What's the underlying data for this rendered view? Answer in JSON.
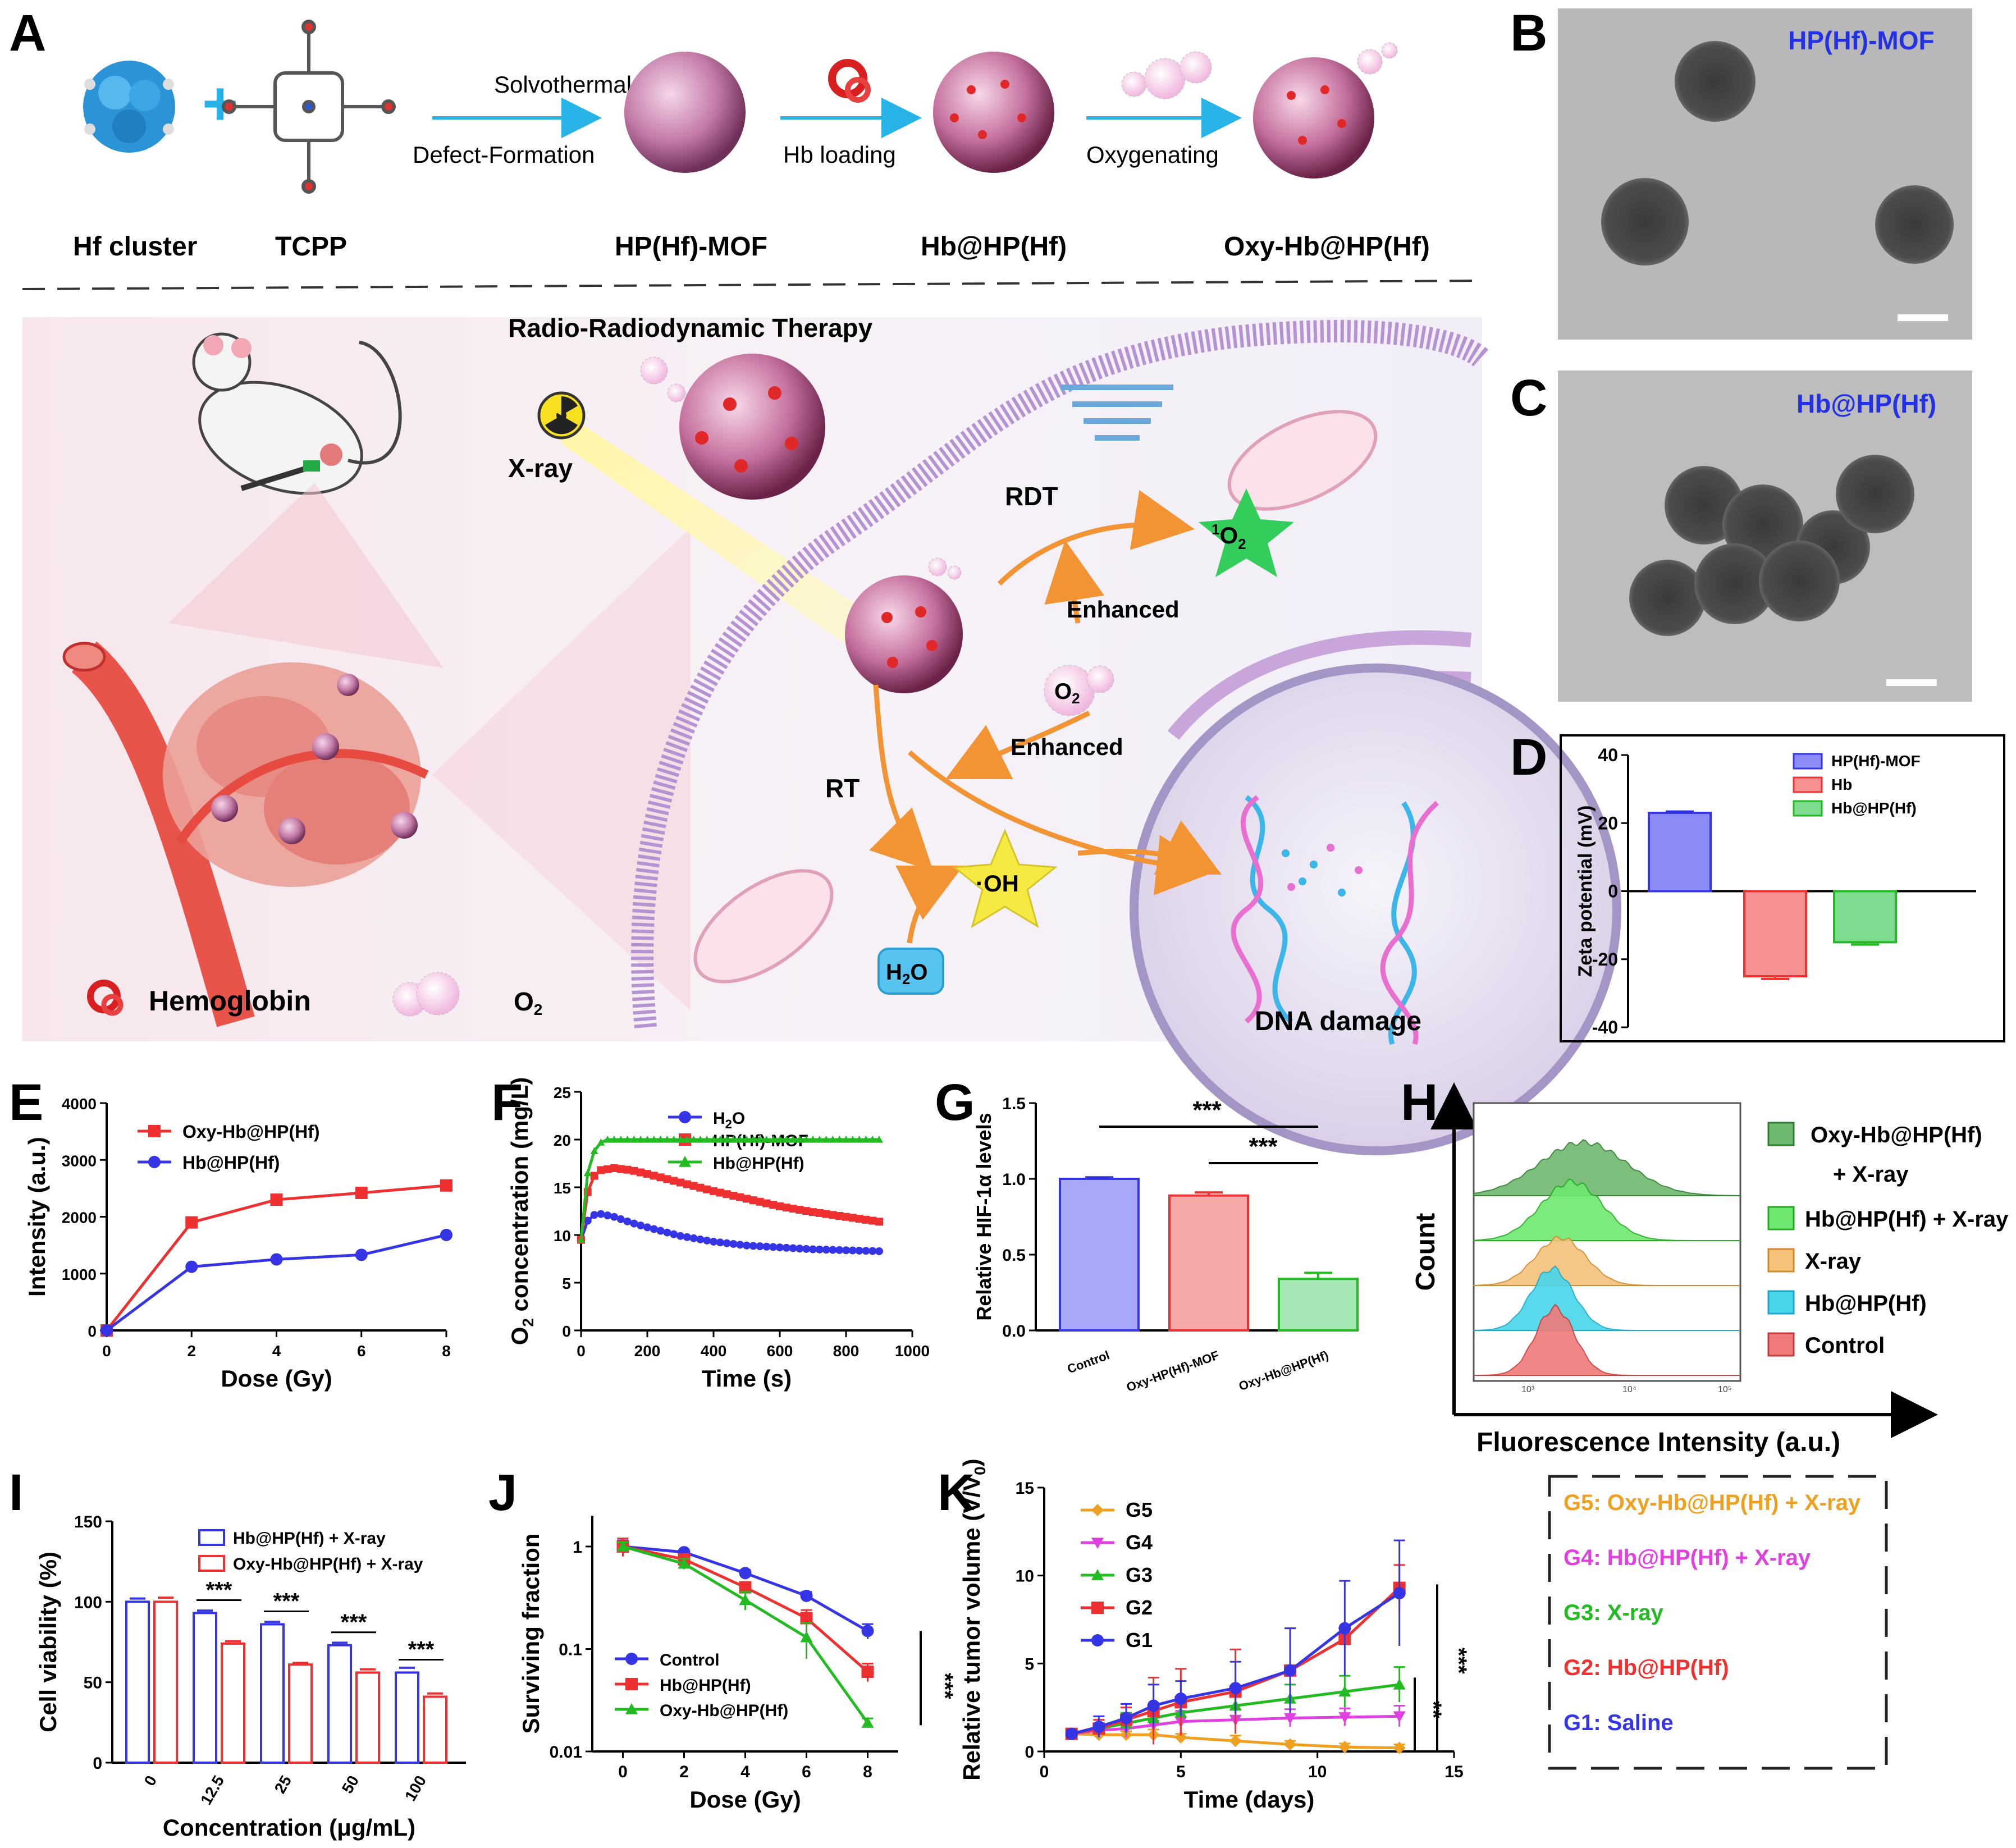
{
  "panels": {
    "A": {
      "letter": "A",
      "steps": [
        "Solvothermal",
        "Defect-Formation",
        "Hb loading",
        "Oxygenating"
      ],
      "components": [
        "Hf cluster",
        "TCPP",
        "HP(Hf)-MOF",
        "Hb@HP(Hf)",
        "Oxy-Hb@HP(Hf)"
      ],
      "therapy_title": "Radio-Radiodynamic  Therapy",
      "labels": {
        "xray": "X-ray",
        "rdt": "RDT",
        "singlet_pre": "1",
        "singlet": "O",
        "singlet_sub": "2",
        "enhanced": "Enhanced",
        "o2_main": "O",
        "o2_sub": "2",
        "rt": "RT",
        "oh": "·OH",
        "h2o_main": "H",
        "h2o_sub": "2",
        "h2o_end": "O",
        "dna": "DNA damage",
        "hemoglobin": "Hemoglobin",
        "o2_legend_main": "O",
        "o2_legend_sub": "2"
      }
    },
    "B": {
      "letter": "B",
      "title": "HP(Hf)-MOF"
    },
    "C": {
      "letter": "C",
      "title": "Hb@HP(Hf)"
    },
    "D": {
      "letter": "D"
    },
    "E": {
      "letter": "E"
    },
    "F": {
      "letter": "F"
    },
    "G": {
      "letter": "G"
    },
    "H": {
      "letter": "H",
      "ylabel": "Count",
      "xlabel": "Fluorescence Intensity (a.u.)",
      "legend": [
        "Oxy-Hb@HP(Hf)",
        "+ X-ray",
        "Hb@HP(Hf) + X-ray",
        "X-ray",
        "Hb@HP(Hf)",
        "Control"
      ],
      "ticks": [
        "10³",
        "10⁴",
        "10⁵"
      ]
    },
    "I": {
      "letter": "I"
    },
    "J": {
      "letter": "J"
    },
    "K": {
      "letter": "K",
      "group_legend": [
        "G5: Oxy-Hb@HP(Hf) + X-ray",
        "G4: Hb@HP(Hf) + X-ray",
        "G3: X-ray",
        "G2: Hb@HP(Hf)",
        "G1: Saline"
      ]
    }
  },
  "colors": {
    "blue": "#3535e6",
    "red": "#ee3030",
    "green": "#22bb22",
    "orange": "#f0a020",
    "magenta": "#e040e0",
    "title_blue": "#2230e8"
  },
  "chart_data": [
    {
      "id": "D",
      "type": "bar",
      "ylabel": "Zeta potential (mV)",
      "ylim": [
        -40,
        40
      ],
      "yticks": [
        -40,
        -20,
        0,
        20,
        40
      ],
      "categories": [
        "HP(Hf)-MOF",
        "Hb",
        "Hb@HP(Hf)"
      ],
      "values": [
        23,
        -25,
        -15
      ],
      "errors": [
        0.4,
        0.8,
        0.7
      ],
      "legend": [
        "HP(Hf)-MOF",
        "Hb",
        "Hb@HP(Hf)"
      ]
    },
    {
      "id": "E",
      "type": "line",
      "xlabel": "Dose (Gy)",
      "ylabel": "Intensity (a.u.)",
      "xlim": [
        0,
        8
      ],
      "ylim": [
        0,
        4000
      ],
      "xticks": [
        0,
        2,
        4,
        6,
        8
      ],
      "yticks": [
        0,
        1000,
        2000,
        3000,
        4000
      ],
      "series": [
        {
          "name": "Oxy-Hb@HP(Hf)",
          "x": [
            0,
            2,
            4,
            6,
            8
          ],
          "y": [
            0,
            1900,
            2300,
            2420,
            2550
          ]
        },
        {
          "name": "Hb@HP(Hf)",
          "x": [
            0,
            2,
            4,
            6,
            8
          ],
          "y": [
            0,
            1120,
            1250,
            1330,
            1680
          ]
        }
      ]
    },
    {
      "id": "F",
      "type": "line",
      "xlabel": "Time (s)",
      "ylabel": "O2 concentration (mg/L)",
      "ylabel_main": "O",
      "ylabel_sub": "2",
      "ylabel_rest": " concentration (mg/L)",
      "xlim": [
        0,
        1000
      ],
      "ylim": [
        0,
        25
      ],
      "xticks": [
        0,
        200,
        400,
        600,
        800,
        1000
      ],
      "yticks": [
        0,
        5,
        10,
        15,
        20,
        25
      ],
      "series": [
        {
          "name": "H2O",
          "name_main": "H",
          "name_sub": "2",
          "name_end": "O",
          "x": [
            0,
            20,
            40,
            60,
            100,
            150,
            200,
            300,
            400,
            500,
            600,
            700,
            800,
            900
          ],
          "y": [
            9.5,
            11.5,
            12.1,
            12.2,
            11.9,
            11.3,
            10.8,
            9.9,
            9.3,
            8.9,
            8.7,
            8.5,
            8.4,
            8.3
          ]
        },
        {
          "name": "HP(Hf)-MOF",
          "x": [
            0,
            20,
            40,
            60,
            100,
            150,
            200,
            300,
            400,
            500,
            600,
            700,
            800,
            900
          ],
          "y": [
            9.5,
            14.5,
            16.2,
            16.8,
            17.0,
            16.8,
            16.4,
            15.5,
            14.6,
            13.8,
            13.0,
            12.4,
            11.9,
            11.4
          ]
        },
        {
          "name": "Hb@HP(Hf)",
          "x": [
            0,
            20,
            40,
            60,
            80,
            100,
            200,
            400,
            600,
            800,
            900
          ],
          "y": [
            9.5,
            16.5,
            18.8,
            19.7,
            20.0,
            20.0,
            20.0,
            20.0,
            20.0,
            20.0,
            20.0
          ]
        }
      ]
    },
    {
      "id": "G",
      "type": "bar",
      "ylabel": "Relative HIF-1α  levels",
      "ylim": [
        0,
        1.5
      ],
      "yticks": [
        0.0,
        0.5,
        1.0,
        1.5
      ],
      "categories": [
        "Control",
        "Oxy-HP(Hf)-MOF",
        "Oxy-Hb@HP(Hf)"
      ],
      "values": [
        1.0,
        0.89,
        0.34
      ],
      "errors": [
        0.01,
        0.02,
        0.04
      ],
      "significance": [
        "***",
        "***"
      ]
    },
    {
      "id": "I",
      "type": "bar",
      "xlabel": "Concentration (μg/mL)",
      "ylabel": "Cell viability (%)",
      "ylim": [
        0,
        150
      ],
      "yticks": [
        0,
        50,
        100,
        150
      ],
      "categories": [
        "0",
        "12.5",
        "25",
        "50",
        "100"
      ],
      "series": [
        {
          "name": "Hb@HP(Hf) + X-ray",
          "values": [
            100,
            93,
            86,
            73,
            56
          ],
          "errors": [
            2,
            1.5,
            1.5,
            1.5,
            3
          ]
        },
        {
          "name": "Oxy-Hb@HP(Hf) + X-ray",
          "values": [
            100,
            74,
            61,
            56,
            41
          ],
          "errors": [
            2.5,
            1.5,
            1,
            2,
            2
          ]
        }
      ],
      "significance": [
        "***",
        "***",
        "***",
        "***"
      ]
    },
    {
      "id": "J",
      "type": "line",
      "scale": "log",
      "xlabel": "Dose (Gy)",
      "ylabel": "Surviving fraction",
      "xlim": [
        -1,
        9
      ],
      "ylim": [
        0.01,
        2
      ],
      "xticks": [
        0,
        2,
        4,
        6,
        8
      ],
      "yticks": [
        0.01,
        0.1,
        1
      ],
      "ytick_labels": [
        "0.01",
        "0.1",
        "1"
      ],
      "series": [
        {
          "name": "Control",
          "x": [
            0,
            2,
            4,
            6,
            8
          ],
          "y": [
            1.0,
            0.88,
            0.55,
            0.33,
            0.15
          ]
        },
        {
          "name": "Hb@HP(Hf)",
          "x": [
            0,
            2,
            4,
            6,
            8
          ],
          "y": [
            1.0,
            0.75,
            0.4,
            0.2,
            0.06
          ]
        },
        {
          "name": "Oxy-Hb@HP(Hf)",
          "x": [
            0,
            2,
            4,
            6,
            8
          ],
          "y": [
            1.0,
            0.68,
            0.3,
            0.13,
            0.019
          ]
        }
      ],
      "significance": "***"
    },
    {
      "id": "K",
      "type": "line",
      "xlabel": "Time (days)",
      "ylabel": "Relative tumor volume (V/V0)",
      "ylabel_main": "Relative tumor volume (V/V",
      "ylabel_sub": "0",
      "ylabel_end": ")",
      "xlim": [
        0,
        15
      ],
      "ylim": [
        0,
        15
      ],
      "xticks": [
        0,
        5,
        10,
        15
      ],
      "yticks": [
        0,
        5,
        10,
        15
      ],
      "series": [
        {
          "name": "G5",
          "x": [
            1,
            2,
            3,
            4,
            5,
            7,
            9,
            11,
            13
          ],
          "y": [
            1.0,
            0.95,
            0.95,
            0.95,
            0.8,
            0.6,
            0.4,
            0.25,
            0.2
          ]
        },
        {
          "name": "G4",
          "x": [
            1,
            2,
            3,
            4,
            5,
            7,
            9,
            11,
            13
          ],
          "y": [
            1.0,
            1.2,
            1.3,
            1.5,
            1.7,
            1.8,
            1.9,
            1.95,
            2.0
          ]
        },
        {
          "name": "G3",
          "x": [
            1,
            2,
            3,
            4,
            5,
            7,
            9,
            11,
            13
          ],
          "y": [
            1.0,
            1.3,
            1.6,
            1.9,
            2.2,
            2.6,
            3.0,
            3.4,
            3.8
          ]
        },
        {
          "name": "G2",
          "x": [
            1,
            2,
            3,
            4,
            5,
            7,
            9,
            11,
            13
          ],
          "y": [
            1.0,
            1.3,
            1.8,
            2.3,
            2.8,
            3.4,
            4.6,
            6.4,
            9.3
          ]
        },
        {
          "name": "G1",
          "x": [
            1,
            2,
            3,
            4,
            5,
            7,
            9,
            11,
            13
          ],
          "y": [
            1.0,
            1.4,
            1.9,
            2.6,
            3.0,
            3.6,
            4.6,
            7.0,
            9.0
          ]
        }
      ],
      "significance": [
        "***",
        "**"
      ]
    }
  ]
}
